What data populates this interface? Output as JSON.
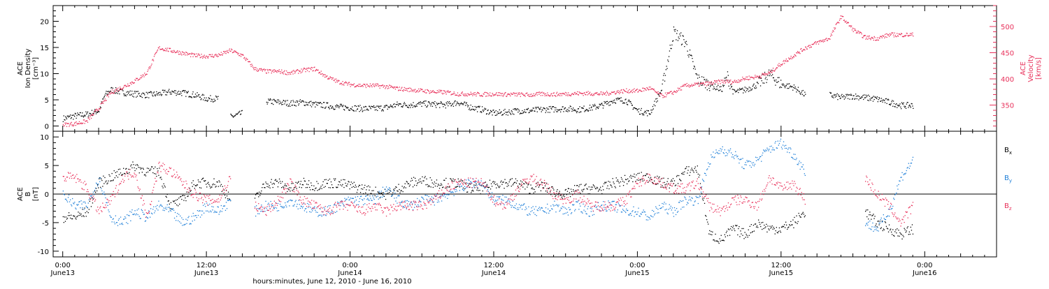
{
  "chart_data": [
    {
      "type": "scatter",
      "panel": "top",
      "ylabel_left": [
        "ACE",
        "Ion Density",
        "[cm⁻³]"
      ],
      "ylabel_right": [
        "ACE",
        "Velocity",
        "[km/s]"
      ],
      "ylim_left": [
        -1,
        23
      ],
      "ylim_right": [
        300,
        540
      ],
      "yticks_left": [
        0,
        5,
        10,
        15,
        20
      ],
      "yticks_right": [
        350,
        400,
        450,
        500
      ],
      "grid": false,
      "series": [
        {
          "axis": "left",
          "color": "#000000",
          "x_hours": [
            0,
            1,
            2,
            3,
            3.5,
            4,
            5,
            6,
            7,
            8,
            9,
            10,
            11,
            12,
            13,
            13.5,
            14,
            15,
            16,
            17,
            18,
            19,
            20,
            21,
            22,
            23,
            24,
            25,
            26,
            27,
            28,
            29,
            30,
            31,
            32,
            33,
            34,
            35,
            36,
            37,
            38,
            39,
            40,
            41,
            42,
            43,
            44,
            45,
            46,
            47,
            48,
            49,
            50,
            51,
            52,
            53,
            54,
            55,
            55.5,
            56,
            57,
            58,
            59,
            60,
            61,
            62,
            63,
            64,
            65,
            66,
            67,
            68,
            69,
            70,
            71
          ],
          "values": [
            1.5,
            2,
            2.3,
            3,
            6,
            7,
            6.5,
            6.2,
            6,
            6.2,
            6.6,
            6.4,
            6,
            5.3,
            5.3,
            null,
            1.8,
            2.5,
            null,
            4.8,
            4.6,
            4.4,
            4.6,
            4.2,
            4,
            3.7,
            3.6,
            3.4,
            3.4,
            3.6,
            4.2,
            4.1,
            4.3,
            4.2,
            4.1,
            4.6,
            3.7,
            3.2,
            2.5,
            2.7,
            3,
            3,
            3.2,
            3.3,
            3.4,
            3.2,
            3.5,
            4,
            5,
            5,
            3,
            2.5,
            7,
            18,
            16,
            9,
            8,
            7,
            9.5,
            6.5,
            7,
            8,
            10,
            8,
            7.5,
            6,
            null,
            6,
            5.5,
            5.8,
            5.5,
            5.2,
            4.6,
            4,
            4
          ]
        },
        {
          "axis": "right",
          "color": "#e8305a",
          "x_hours": [
            0,
            1,
            2,
            3,
            4,
            5,
            6,
            7,
            8,
            9,
            10,
            11,
            12,
            13,
            14,
            15,
            16,
            17,
            18,
            19,
            20,
            21,
            22,
            23,
            24,
            25,
            26,
            27,
            28,
            29,
            30,
            31,
            32,
            33,
            34,
            35,
            36,
            37,
            38,
            39,
            40,
            41,
            42,
            43,
            44,
            45,
            46,
            47,
            48,
            49,
            50,
            51,
            52,
            53,
            54,
            55,
            56,
            57,
            58,
            59,
            60,
            61,
            62,
            63,
            64,
            65,
            66,
            67,
            68,
            69,
            70,
            71
          ],
          "values": [
            313,
            315,
            320,
            345,
            375,
            385,
            397,
            412,
            460,
            455,
            450,
            445,
            444,
            446,
            455,
            445,
            420,
            415,
            415,
            412,
            417,
            420,
            405,
            395,
            390,
            388,
            388,
            386,
            382,
            380,
            378,
            376,
            375,
            372,
            372,
            371,
            372,
            371,
            371,
            370,
            372,
            371,
            372,
            373,
            373,
            372,
            375,
            378,
            378,
            383,
            368,
            375,
            388,
            390,
            392,
            396,
            395,
            402,
            405,
            412,
            430,
            445,
            460,
            470,
            478,
            520,
            495,
            480,
            478,
            485,
            485,
            485
          ]
        }
      ]
    },
    {
      "type": "scatter",
      "panel": "bottom",
      "ylabel": [
        "ACE",
        "B",
        "[nT]"
      ],
      "ylim": [
        -11,
        11
      ],
      "yticks": [
        -10,
        -5,
        0,
        5,
        10
      ],
      "zero_line": true,
      "grid": false,
      "series": [
        {
          "name": "Bx",
          "color": "#000000",
          "x_hours": [
            0,
            1,
            2,
            3,
            4,
            5,
            6,
            7,
            8,
            9,
            10,
            11,
            12,
            13,
            14,
            15,
            16,
            17,
            18,
            19,
            20,
            21,
            22,
            23,
            24,
            25,
            26,
            27,
            28,
            29,
            30,
            31,
            32,
            33,
            34,
            35,
            36,
            37,
            38,
            39,
            40,
            41,
            42,
            43,
            44,
            45,
            46,
            47,
            48,
            49,
            50,
            51,
            52,
            53,
            54,
            55,
            56,
            57,
            58,
            59,
            60,
            61,
            62,
            63,
            64,
            65,
            66,
            67,
            68,
            69,
            70,
            71
          ],
          "values": [
            -4,
            -4,
            -3,
            2,
            3,
            4,
            5,
            4,
            4,
            -2,
            -1,
            2,
            2,
            2,
            -1,
            null,
            -1,
            2,
            2,
            1,
            2,
            1.5,
            2,
            2,
            1.5,
            1,
            0.5,
            0,
            1,
            2,
            2.5,
            2,
            2,
            2,
            1,
            1,
            2,
            2,
            2,
            1,
            1.5,
            0.5,
            0,
            1,
            1,
            1,
            2,
            2.5,
            3,
            3,
            2,
            2,
            4,
            4.5,
            -7,
            -8,
            -6,
            -7,
            -5,
            -6,
            -6,
            -5,
            -3,
            null,
            null,
            null,
            null,
            -3,
            -5,
            -6,
            -7,
            -6
          ]
        },
        {
          "name": "By",
          "color": "#1e7fd8",
          "x_hours": [
            0,
            1,
            2,
            3,
            4,
            5,
            6,
            7,
            8,
            9,
            10,
            11,
            12,
            13,
            14,
            15,
            16,
            17,
            18,
            19,
            20,
            21,
            22,
            23,
            24,
            25,
            26,
            27,
            28,
            29,
            30,
            31,
            32,
            33,
            34,
            35,
            36,
            37,
            38,
            39,
            40,
            41,
            42,
            43,
            44,
            45,
            46,
            47,
            48,
            49,
            50,
            51,
            52,
            53,
            54,
            55,
            56,
            57,
            58,
            59,
            60,
            61,
            62,
            63,
            64,
            65,
            66,
            67,
            68,
            69,
            70,
            71
          ],
          "values": [
            0,
            -2,
            -2,
            3,
            -4,
            -5,
            -3,
            -4,
            -2,
            -3,
            -5,
            -4,
            -2,
            -3,
            -1,
            null,
            -3,
            -2,
            -2,
            -1,
            -2,
            -3,
            -3,
            -2,
            -1,
            -1,
            -1,
            1,
            -1,
            -2,
            -1,
            -1,
            0,
            1,
            2,
            2,
            -1,
            -1,
            -2,
            -3,
            -3,
            -2,
            -3,
            -2,
            -3,
            -2,
            -2,
            -3,
            -3,
            -4,
            -2,
            -3,
            -1,
            -1,
            6,
            8,
            7,
            5,
            6,
            8,
            9,
            7,
            4,
            null,
            null,
            null,
            null,
            -5,
            -6,
            -3,
            3,
            6
          ]
        },
        {
          "name": "Bz",
          "color": "#e8305a",
          "x_hours": [
            0,
            1,
            2,
            3,
            4,
            5,
            6,
            7,
            8,
            9,
            10,
            11,
            12,
            13,
            14,
            15,
            16,
            17,
            18,
            19,
            20,
            21,
            22,
            23,
            24,
            25,
            26,
            27,
            28,
            29,
            30,
            31,
            32,
            33,
            34,
            35,
            36,
            37,
            38,
            39,
            40,
            41,
            42,
            43,
            44,
            45,
            46,
            47,
            48,
            49,
            50,
            51,
            52,
            53,
            54,
            55,
            56,
            57,
            58,
            59,
            60,
            61,
            62,
            63,
            64,
            65,
            66,
            67,
            68,
            69,
            70,
            71
          ],
          "values": [
            3,
            3,
            1,
            -3,
            -1,
            3,
            4,
            -4,
            5,
            4,
            2,
            0,
            -1,
            -1,
            3,
            null,
            -2,
            -3,
            -1,
            2,
            -1,
            -2,
            -3,
            -2,
            -2,
            -3,
            -2,
            -3,
            -2,
            -2,
            -2,
            -1,
            1,
            2,
            2,
            2,
            -1,
            -2,
            1,
            3,
            2,
            0,
            -1,
            0,
            -2,
            -2,
            -2,
            -1,
            2,
            3,
            2,
            1,
            1,
            2,
            -2,
            -3,
            -1,
            -1,
            -2,
            3,
            1,
            2,
            -1,
            null,
            null,
            null,
            null,
            3,
            0,
            -2,
            -5,
            -2
          ]
        }
      ],
      "legend": [
        "Bx",
        "By",
        "Bz"
      ],
      "legend_placement": "right"
    }
  ],
  "x_axis": {
    "tick_times": [
      "0:00",
      "12:00",
      "0:00",
      "12:00",
      "0:00",
      "12:00",
      "0:00"
    ],
    "tick_days": [
      "June13",
      "June13",
      "June14",
      "June14",
      "June15",
      "June15",
      "June16"
    ],
    "tick_hours": [
      0,
      12,
      24,
      36,
      48,
      60,
      72
    ],
    "range_hours": [
      -0.8,
      78
    ],
    "label": "hours:minutes, June 12, 2010 - June 16, 2010"
  },
  "colors": {
    "black": "#000000",
    "blue": "#1e7fd8",
    "pink": "#e8305a"
  }
}
